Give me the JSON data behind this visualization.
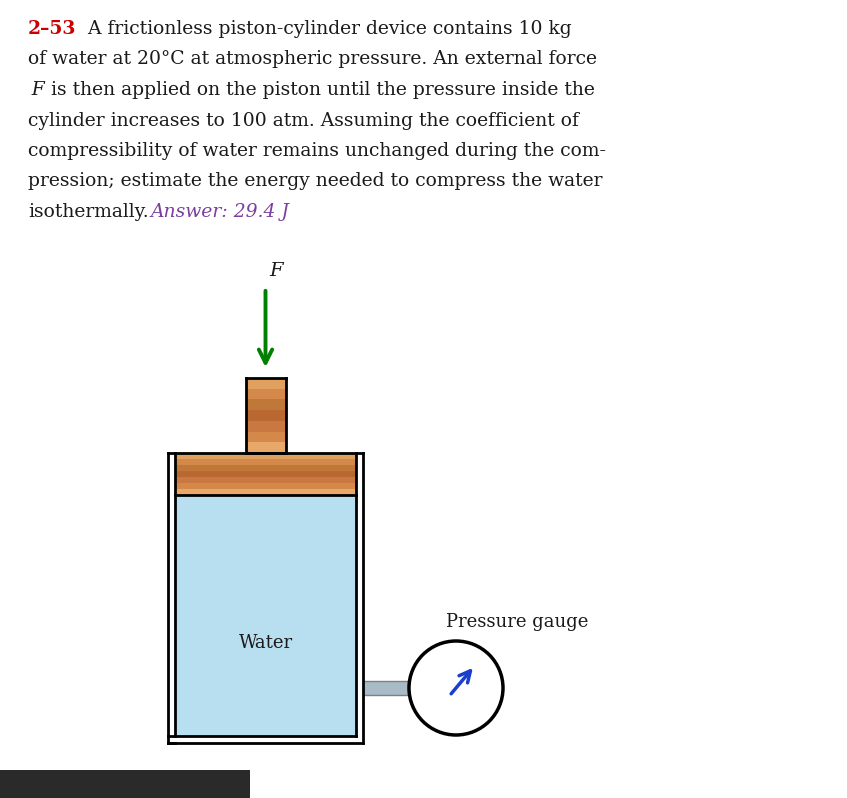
{
  "title_num": "2–53",
  "title_color": "#cc0000",
  "answer_text": "Answer: 29.4 J",
  "answer_color": "#7B3F9E",
  "background_color": "#ffffff",
  "water_color": "#b8dff0",
  "arrow_color": "#008000",
  "gauge_arrow_color": "#1a3fcc",
  "label_water": "Water",
  "label_pressure": "Pressure gauge",
  "label_F": "F",
  "body_lines": [
    "2–53  A frictionless piston-cylinder device contains 10 kg",
    "of water at 20°C at atmospheric pressure. An external force",
    "F is then applied on the piston until the pressure inside the",
    "cylinder increases to 100 atm. Assuming the coefficient of",
    "compressibility of water remains unchanged during the com-",
    "pression; estimate the energy needed to compress the water",
    "isothermally.    Answer: 29.4 J"
  ]
}
